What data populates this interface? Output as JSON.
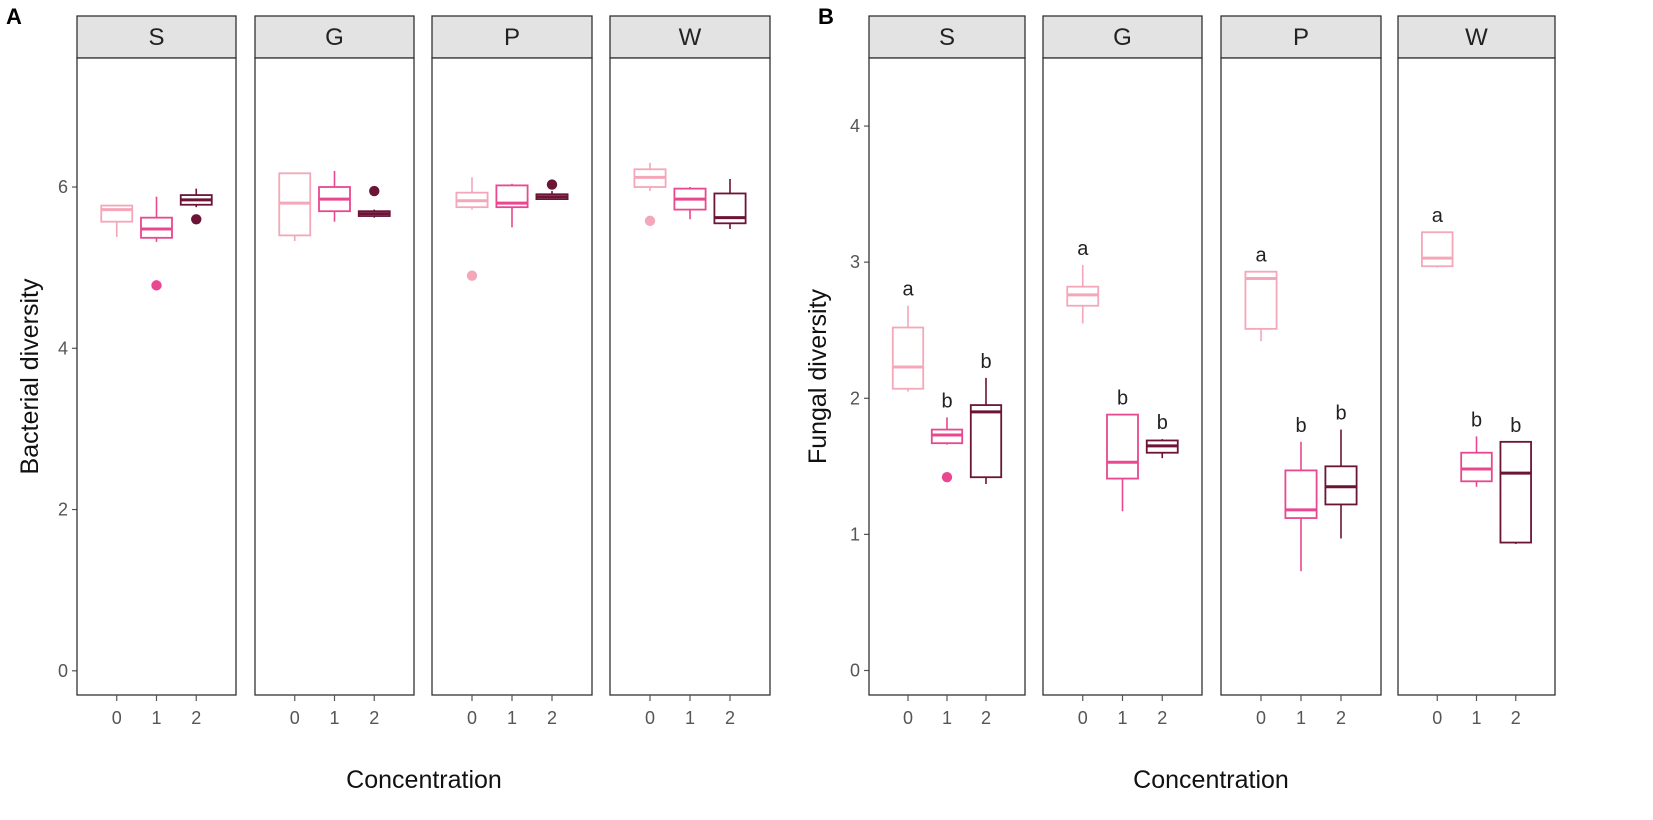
{
  "chart_data": [
    {
      "panel": "A",
      "type": "boxplot",
      "xlabel": "Concentration",
      "ylabel": "Bacterial diversity",
      "ylim": [
        -0.3,
        7.6
      ],
      "yticks": [
        0,
        2,
        4,
        6
      ],
      "categories": [
        "0",
        "1",
        "2"
      ],
      "colors": [
        "#f4a7b9",
        "#e8488f",
        "#6b1436"
      ],
      "facets": [
        {
          "name": "S",
          "boxes": [
            {
              "cat": "0",
              "whisker_low": 5.38,
              "q1": 5.57,
              "median": 5.72,
              "q3": 5.77,
              "whisker_high": 5.78,
              "outliers": []
            },
            {
              "cat": "1",
              "whisker_low": 5.32,
              "q1": 5.37,
              "median": 5.48,
              "q3": 5.62,
              "whisker_high": 5.88,
              "outliers": [
                4.78
              ]
            },
            {
              "cat": "2",
              "whisker_low": 5.75,
              "q1": 5.78,
              "median": 5.84,
              "q3": 5.9,
              "whisker_high": 5.98,
              "outliers": [
                5.6
              ]
            }
          ],
          "labels": []
        },
        {
          "name": "G",
          "boxes": [
            {
              "cat": "0",
              "whisker_low": 5.33,
              "q1": 5.4,
              "median": 5.8,
              "q3": 6.17,
              "whisker_high": 6.17,
              "outliers": []
            },
            {
              "cat": "1",
              "whisker_low": 5.57,
              "q1": 5.7,
              "median": 5.85,
              "q3": 6.0,
              "whisker_high": 6.2,
              "outliers": []
            },
            {
              "cat": "2",
              "whisker_low": 5.62,
              "q1": 5.64,
              "median": 5.67,
              "q3": 5.7,
              "whisker_high": 5.72,
              "outliers": [
                5.95
              ]
            }
          ],
          "labels": []
        },
        {
          "name": "P",
          "boxes": [
            {
              "cat": "0",
              "whisker_low": 5.72,
              "q1": 5.75,
              "median": 5.83,
              "q3": 5.93,
              "whisker_high": 6.12,
              "outliers": [
                4.9
              ]
            },
            {
              "cat": "1",
              "whisker_low": 5.5,
              "q1": 5.75,
              "median": 5.8,
              "q3": 6.02,
              "whisker_high": 6.04,
              "outliers": []
            },
            {
              "cat": "2",
              "whisker_low": 5.84,
              "q1": 5.85,
              "median": 5.88,
              "q3": 5.91,
              "whisker_high": 5.95,
              "outliers": [
                6.03
              ]
            }
          ],
          "labels": []
        },
        {
          "name": "W",
          "boxes": [
            {
              "cat": "0",
              "whisker_low": 5.95,
              "q1": 6.0,
              "median": 6.12,
              "q3": 6.22,
              "whisker_high": 6.3,
              "outliers": [
                5.58
              ]
            },
            {
              "cat": "1",
              "whisker_low": 5.6,
              "q1": 5.72,
              "median": 5.85,
              "q3": 5.98,
              "whisker_high": 6.0,
              "outliers": []
            },
            {
              "cat": "2",
              "whisker_low": 5.48,
              "q1": 5.55,
              "median": 5.62,
              "q3": 5.92,
              "whisker_high": 6.1,
              "outliers": []
            }
          ],
          "labels": []
        }
      ]
    },
    {
      "panel": "B",
      "type": "boxplot",
      "xlabel": "Concentration",
      "ylabel": "Fungal diversity",
      "ylim": [
        -0.18,
        4.5
      ],
      "yticks": [
        0,
        1,
        2,
        3,
        4
      ],
      "categories": [
        "0",
        "1",
        "2"
      ],
      "colors": [
        "#f4a7b9",
        "#e8488f",
        "#6b1436"
      ],
      "facets": [
        {
          "name": "S",
          "boxes": [
            {
              "cat": "0",
              "whisker_low": 2.05,
              "q1": 2.07,
              "median": 2.23,
              "q3": 2.52,
              "whisker_high": 2.68,
              "outliers": []
            },
            {
              "cat": "1",
              "whisker_low": 1.66,
              "q1": 1.67,
              "median": 1.73,
              "q3": 1.77,
              "whisker_high": 1.86,
              "outliers": [
                1.42
              ]
            },
            {
              "cat": "2",
              "whisker_low": 1.37,
              "q1": 1.42,
              "median": 1.9,
              "q3": 1.95,
              "whisker_high": 2.15,
              "outliers": []
            }
          ],
          "labels": [
            "a",
            "b",
            "b"
          ]
        },
        {
          "name": "G",
          "boxes": [
            {
              "cat": "0",
              "whisker_low": 2.55,
              "q1": 2.68,
              "median": 2.76,
              "q3": 2.82,
              "whisker_high": 2.98,
              "outliers": []
            },
            {
              "cat": "1",
              "whisker_low": 1.17,
              "q1": 1.41,
              "median": 1.53,
              "q3": 1.88,
              "whisker_high": 1.88,
              "outliers": []
            },
            {
              "cat": "2",
              "whisker_low": 1.56,
              "q1": 1.6,
              "median": 1.65,
              "q3": 1.69,
              "whisker_high": 1.7,
              "outliers": []
            }
          ],
          "labels": [
            "a",
            "b",
            "b"
          ]
        },
        {
          "name": "P",
          "boxes": [
            {
              "cat": "0",
              "whisker_low": 2.42,
              "q1": 2.51,
              "median": 2.88,
              "q3": 2.93,
              "whisker_high": 2.93,
              "outliers": []
            },
            {
              "cat": "1",
              "whisker_low": 0.73,
              "q1": 1.12,
              "median": 1.18,
              "q3": 1.47,
              "whisker_high": 1.68,
              "outliers": []
            },
            {
              "cat": "2",
              "whisker_low": 0.97,
              "q1": 1.22,
              "median": 1.35,
              "q3": 1.5,
              "whisker_high": 1.77,
              "outliers": []
            }
          ],
          "labels": [
            "a",
            "b",
            "b"
          ]
        },
        {
          "name": "W",
          "boxes": [
            {
              "cat": "0",
              "whisker_low": 2.96,
              "q1": 2.97,
              "median": 3.03,
              "q3": 3.22,
              "whisker_high": 3.22,
              "outliers": []
            },
            {
              "cat": "1",
              "whisker_low": 1.35,
              "q1": 1.39,
              "median": 1.48,
              "q3": 1.6,
              "whisker_high": 1.72,
              "outliers": []
            },
            {
              "cat": "2",
              "whisker_low": 0.93,
              "q1": 0.94,
              "median": 1.45,
              "q3": 1.68,
              "whisker_high": 1.68,
              "outliers": []
            }
          ],
          "labels": [
            "a",
            "b",
            "b"
          ]
        }
      ]
    }
  ]
}
